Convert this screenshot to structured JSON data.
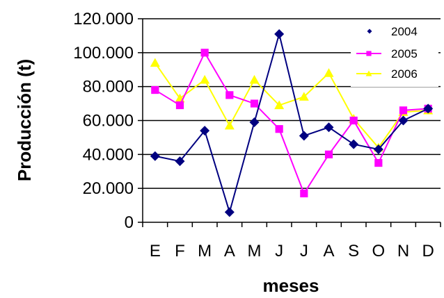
{
  "chart_data": {
    "type": "line",
    "xlabel": "meses",
    "ylabel": "Producción (t)",
    "categories": [
      "E",
      "F",
      "M",
      "A",
      "M",
      "J",
      "J",
      "A",
      "S",
      "O",
      "N",
      "D"
    ],
    "y_ticks": [
      "0",
      "20.000",
      "40.000",
      "60.000",
      "80.000",
      "100.000",
      "120.000"
    ],
    "ylim": [
      0,
      120000
    ],
    "grid": true,
    "legend_position": "top-right",
    "series": [
      {
        "name": "2004",
        "color": "#000080",
        "marker": "diamond",
        "values": [
          39000,
          36000,
          54000,
          6000,
          59000,
          111000,
          51000,
          56000,
          46000,
          43000,
          60000,
          67000
        ]
      },
      {
        "name": "2005",
        "color": "#ff00ff",
        "marker": "square",
        "values": [
          78000,
          69000,
          100000,
          75000,
          70000,
          55000,
          17000,
          40000,
          60000,
          35000,
          66000,
          67000
        ]
      },
      {
        "name": "2006",
        "color": "#ffff00",
        "marker": "triangle",
        "values": [
          94000,
          73000,
          84000,
          57000,
          84000,
          69000,
          74000,
          88000,
          61000,
          44000,
          65000,
          66000
        ]
      }
    ]
  }
}
